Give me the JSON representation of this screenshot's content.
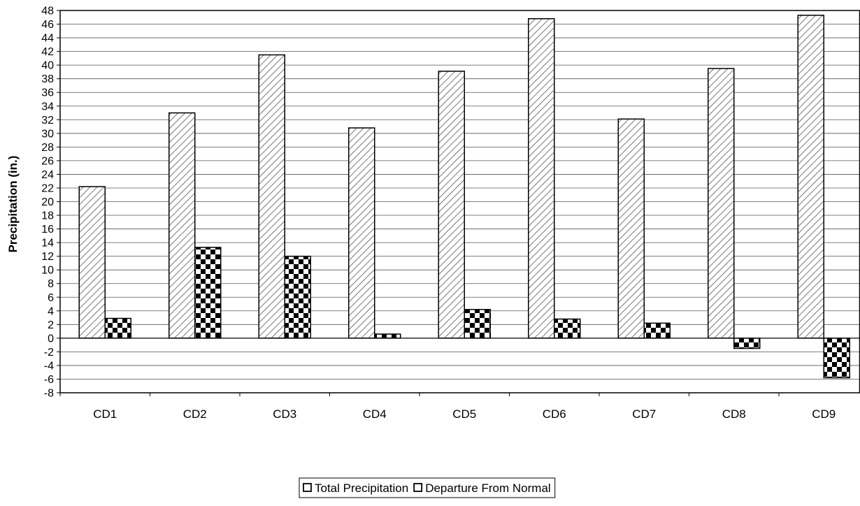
{
  "chart_data": {
    "type": "bar",
    "title": "",
    "xlabel": "",
    "ylabel": "Precipitation (in.)",
    "ylim": [
      -8,
      48
    ],
    "ytick_step": 2,
    "grid": true,
    "legend_position": "bottom-center",
    "categories": [
      "CD1",
      "CD2",
      "CD3",
      "CD4",
      "CD5",
      "CD6",
      "CD7",
      "CD8",
      "CD9"
    ],
    "series": [
      {
        "name": "Total Precipitation",
        "pattern": "diagonal-hatch",
        "values": [
          22.2,
          33.0,
          41.5,
          30.8,
          39.1,
          46.8,
          32.1,
          39.5,
          47.3
        ]
      },
      {
        "name": "Departure From Normal",
        "pattern": "checkerboard",
        "values": [
          2.9,
          13.3,
          12.0,
          0.6,
          4.2,
          2.8,
          2.2,
          -1.5,
          -5.8
        ]
      }
    ],
    "colors": {
      "frame": "#000000",
      "grid": "#555555",
      "fill": "#ffffff",
      "hatch": "#555555",
      "checker": "#000000"
    }
  }
}
